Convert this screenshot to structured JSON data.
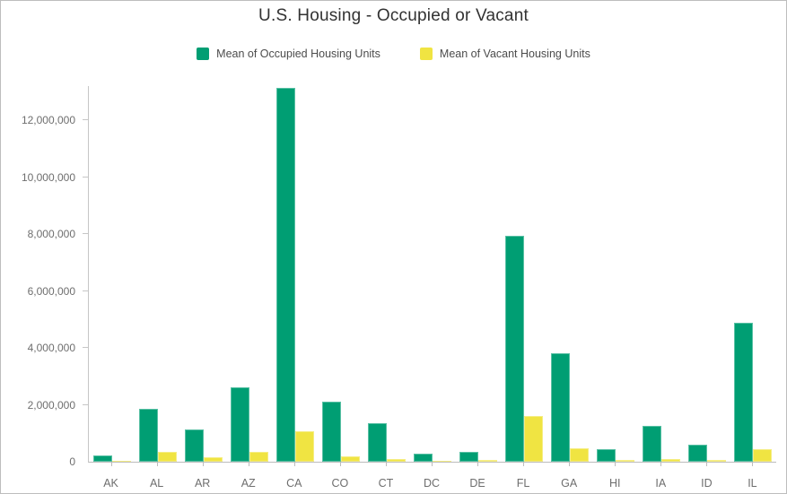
{
  "frame": {
    "background": "#ffffff",
    "border_color": "#bdbdbd"
  },
  "chart_data": {
    "type": "bar",
    "title": "U.S. Housing - Occupied or Vacant",
    "xlabel": "",
    "ylabel": "",
    "grid": false,
    "legend_position": "top",
    "categories": [
      "AK",
      "AL",
      "AR",
      "AZ",
      "CA",
      "CO",
      "CT",
      "DC",
      "DE",
      "FL",
      "GA",
      "HI",
      "IA",
      "ID",
      "IL"
    ],
    "series": [
      {
        "name": "Mean of Occupied Housing Units",
        "color": "#009e73",
        "values": [
          210000,
          1860000,
          1130000,
          2600000,
          13150000,
          2100000,
          1340000,
          270000,
          340000,
          7930000,
          3800000,
          440000,
          1250000,
          600000,
          4880000
        ]
      },
      {
        "name": "Mean of Vacant Housing Units",
        "color": "#f0e442",
        "values": [
          40000,
          350000,
          170000,
          360000,
          1070000,
          200000,
          100000,
          30000,
          70000,
          1600000,
          460000,
          60000,
          100000,
          50000,
          450000
        ]
      }
    ],
    "ylim": [
      0,
      13200000
    ],
    "ytick_values": [
      0,
      2000000,
      4000000,
      6000000,
      8000000,
      10000000,
      12000000
    ],
    "ytick_labels": [
      "0",
      "2,000,000",
      "4,000,000",
      "6,000,000",
      "8,000,000",
      "10,000,000",
      "12,000,000"
    ],
    "axis_color": "#c6c6c6",
    "tick_label_color": "#6e6e6e",
    "title_color": "#323232"
  }
}
